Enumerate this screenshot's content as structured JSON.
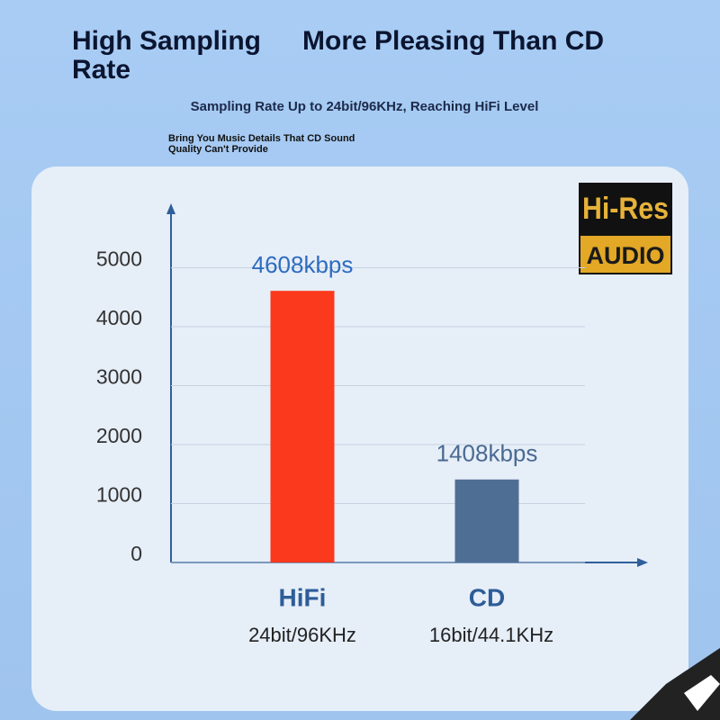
{
  "header": {
    "title": "High Sampling Rate",
    "title_right": "More Pleasing Than CD",
    "subtitle": "Sampling Rate Up to 24bit/96KHz, Reaching HiFi Level",
    "note": "Bring You Music Details That CD Sound Quality Can't Provide"
  },
  "logo": {
    "top": "Hi-Res",
    "bottom": "AUDIO"
  },
  "chart_data": {
    "type": "bar",
    "categories": [
      "HiFi",
      "CD"
    ],
    "category_sublabels": [
      "24bit/96KHz",
      "16bit/44.1KHz"
    ],
    "values": [
      4608,
      1408
    ],
    "value_labels": [
      "4608kbps",
      "1408kbps"
    ],
    "colors": [
      "#fb391c",
      "#4f6e94"
    ],
    "ylim": [
      0,
      6000
    ],
    "yticks": [
      0,
      1000,
      2000,
      3000,
      4000,
      5000
    ],
    "grid": true
  }
}
